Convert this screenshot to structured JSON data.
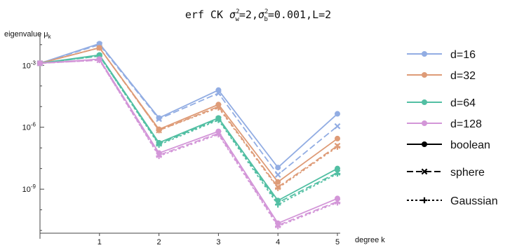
{
  "chart_data": {
    "type": "line",
    "title": {
      "prefix": "erf CK ",
      "sw_sym": "σ",
      "sw_sub": "w",
      "sw_sup": "2",
      "sw_val": "=2,",
      "sb_sym": "σ",
      "sb_sub": "b",
      "sb_sup": "2",
      "sb_val": "=0.001,L=2"
    },
    "ylabel": "eigenvalue μ",
    "ylabel_sub": "k",
    "xlabel": "degree k",
    "x": [
      0,
      1,
      2,
      3,
      4,
      5
    ],
    "xticks": [
      1,
      2,
      3,
      4,
      5
    ],
    "xlim": [
      0,
      5
    ],
    "yscale": "log",
    "ylim_log10": [
      -11.2,
      -1.6
    ],
    "yticks": [
      {
        "exp": -3,
        "base": "10",
        "sup": "-3"
      },
      {
        "exp": -6,
        "base": "10",
        "sup": "-6"
      },
      {
        "exp": -9,
        "base": "10",
        "sup": "-9"
      }
    ],
    "series_colors": {
      "d=16": "#92ade3",
      "d=32": "#de9b77",
      "d=64": "#52bfa3",
      "d=128": "#d396d8"
    },
    "series": [
      {
        "d": "d=16",
        "style": "boolean",
        "log10": [
          -2.9,
          -1.95,
          -5.55,
          -4.2,
          -7.95,
          -5.35
        ]
      },
      {
        "d": "d=16",
        "style": "sphere",
        "log10": [
          -2.9,
          -2.0,
          -5.6,
          -4.35,
          -8.3,
          -5.95
        ]
      },
      {
        "d": "d=32",
        "style": "boolean",
        "log10": [
          -2.9,
          -2.15,
          -6.1,
          -4.9,
          -8.65,
          -6.55
        ]
      },
      {
        "d": "d=32",
        "style": "sphere",
        "log10": [
          -2.9,
          -2.15,
          -6.15,
          -5.0,
          -8.9,
          -6.9
        ]
      },
      {
        "d": "d=32",
        "style": "Gaussian",
        "log10": [
          -2.9,
          -2.15,
          -6.15,
          -5.05,
          -8.95,
          -6.95
        ]
      },
      {
        "d": "d=64",
        "style": "boolean",
        "log10": [
          -2.9,
          -2.5,
          -6.75,
          -5.55,
          -9.55,
          -8.0
        ]
      },
      {
        "d": "d=64",
        "style": "sphere",
        "log10": [
          -2.9,
          -2.55,
          -6.8,
          -5.6,
          -9.65,
          -8.2
        ]
      },
      {
        "d": "d=64",
        "style": "Gaussian",
        "log10": [
          -2.9,
          -2.55,
          -6.85,
          -5.65,
          -9.75,
          -8.25
        ]
      },
      {
        "d": "d=128",
        "style": "boolean",
        "log10": [
          -2.9,
          -2.7,
          -7.25,
          -6.2,
          -10.65,
          -9.45
        ]
      },
      {
        "d": "d=128",
        "style": "sphere",
        "log10": [
          -2.9,
          -2.75,
          -7.35,
          -6.3,
          -10.75,
          -9.6
        ]
      },
      {
        "d": "d=128",
        "style": "Gaussian",
        "log10": [
          -2.9,
          -2.75,
          -7.4,
          -6.35,
          -10.8,
          -9.65
        ]
      }
    ],
    "legend": {
      "placement": "right",
      "entries": [
        {
          "label": "d=16",
          "kind": "color"
        },
        {
          "label": "d=32",
          "kind": "color"
        },
        {
          "label": "d=64",
          "kind": "color"
        },
        {
          "label": "d=128",
          "kind": "color"
        },
        {
          "label": "boolean",
          "kind": "style"
        },
        {
          "label": "sphere",
          "kind": "style"
        },
        {
          "label": "Gaussian",
          "kind": "style"
        }
      ]
    }
  }
}
